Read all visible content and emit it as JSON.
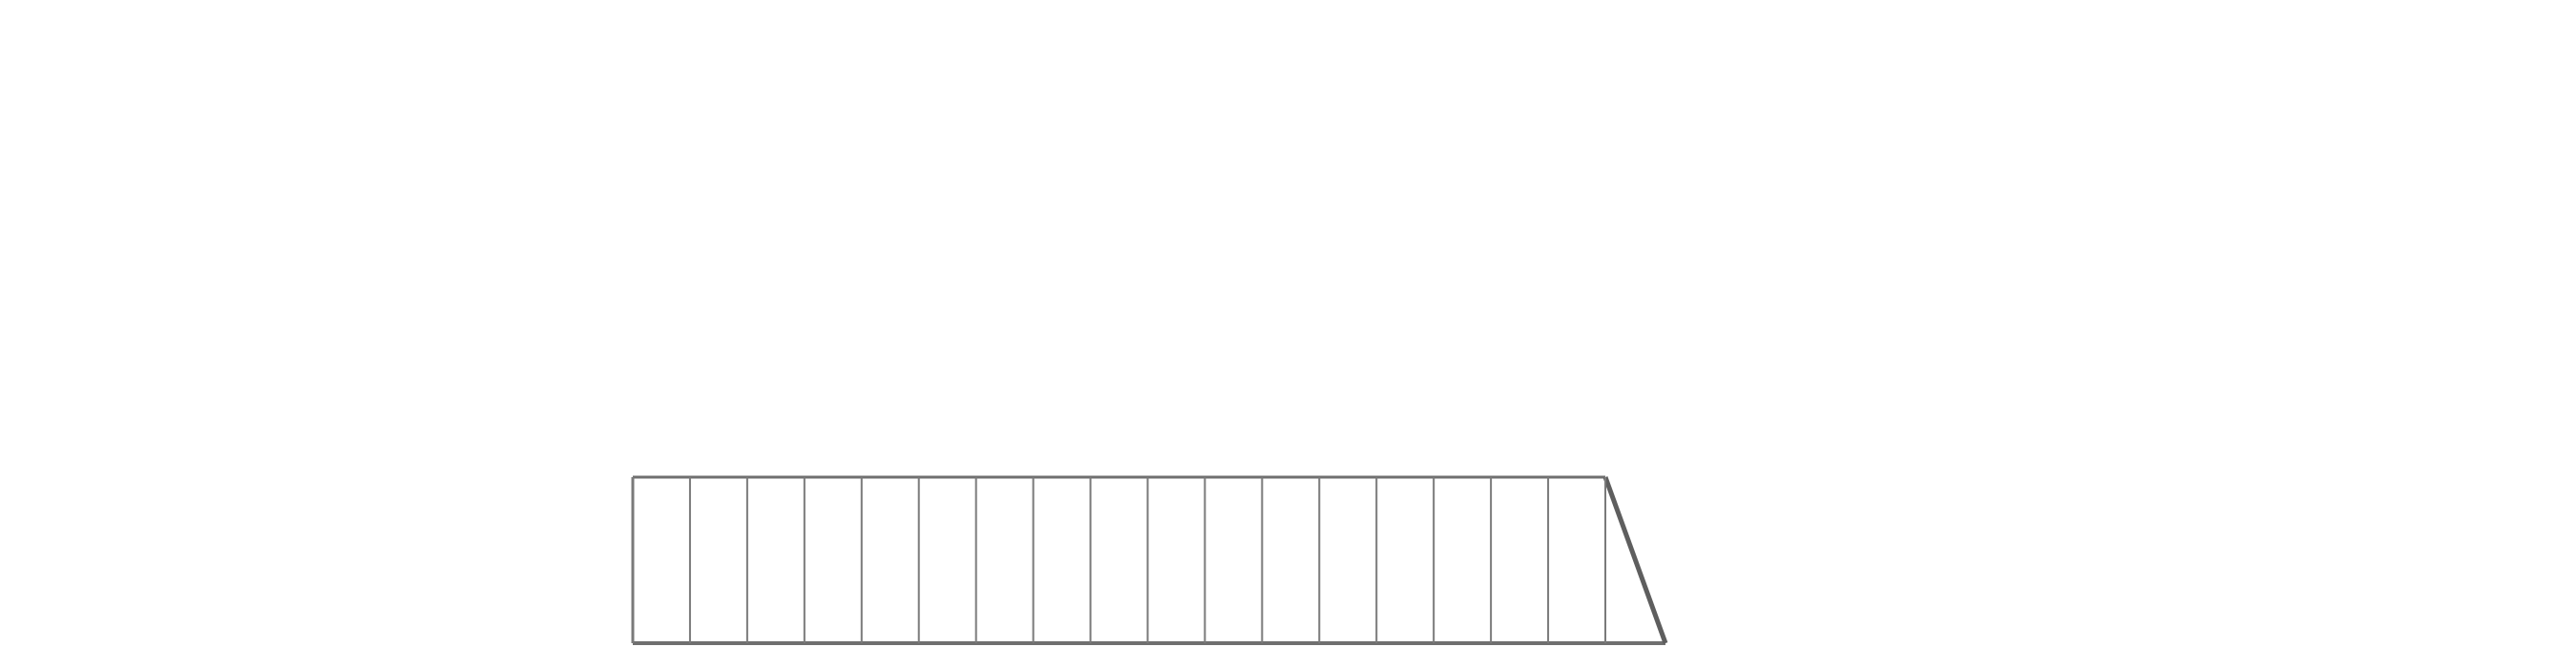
{
  "diagram": {
    "description": "",
    "colors": {
      "background": "#ffffff",
      "outline": "#6f6f6f",
      "divider": "#7a7a7a",
      "slant_edge": "#5e5e5e"
    },
    "panel_count": 17
  }
}
